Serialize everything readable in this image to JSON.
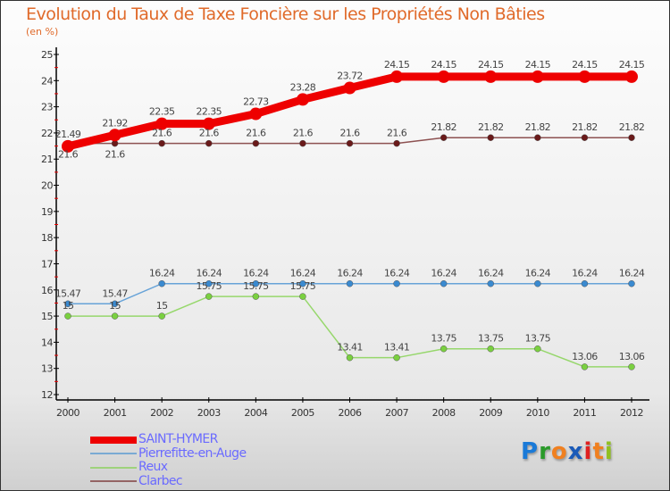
{
  "chart_data": {
    "type": "line",
    "title": "Evolution du Taux de Taxe Foncière sur les Propriétés Non Bâties",
    "ylabel": "(en %)",
    "xlabel": "",
    "x": [
      "2000",
      "2001",
      "2002",
      "2003",
      "2004",
      "2005",
      "2006",
      "2007",
      "2008",
      "2009",
      "2010",
      "2011",
      "2012"
    ],
    "ylim": [
      12,
      25
    ],
    "yticks": [
      "12",
      "13",
      "14",
      "15",
      "16",
      "17",
      "18",
      "19",
      "20",
      "21",
      "22",
      "23",
      "24",
      "25"
    ],
    "legend_position": "bottom-left",
    "series": [
      {
        "name": "SAINT-HYMER",
        "color": "#ee0000",
        "values": [
          21.49,
          21.92,
          22.35,
          22.35,
          22.73,
          23.28,
          23.72,
          24.15,
          24.15,
          24.15,
          24.15,
          24.15,
          24.15
        ]
      },
      {
        "name": "Pierrefitte-en-Auge",
        "color": "#3a8ad0",
        "values": [
          15.47,
          15.47,
          16.24,
          16.24,
          16.24,
          16.24,
          16.24,
          16.24,
          16.24,
          16.24,
          16.24,
          16.24,
          16.24
        ]
      },
      {
        "name": "Reux",
        "color": "#7ad040",
        "values": [
          15,
          15,
          15,
          15.75,
          15.75,
          15.75,
          13.41,
          13.41,
          13.75,
          13.75,
          13.75,
          13.06,
          13.06
        ]
      },
      {
        "name": "Clarbec",
        "color": "#6a1a1a",
        "values": [
          21.6,
          21.6,
          21.6,
          21.6,
          21.6,
          21.6,
          21.6,
          21.6,
          21.82,
          21.82,
          21.82,
          21.82,
          21.82
        ]
      }
    ]
  },
  "logo": {
    "letters": [
      "P",
      "r",
      "o",
      "x",
      "i",
      "t",
      "i"
    ],
    "colors": [
      "#1a7ad8",
      "#2a9a2a",
      "#f08020",
      "#1a5ab8",
      "#e02020",
      "#f08020",
      "#90c020"
    ]
  }
}
